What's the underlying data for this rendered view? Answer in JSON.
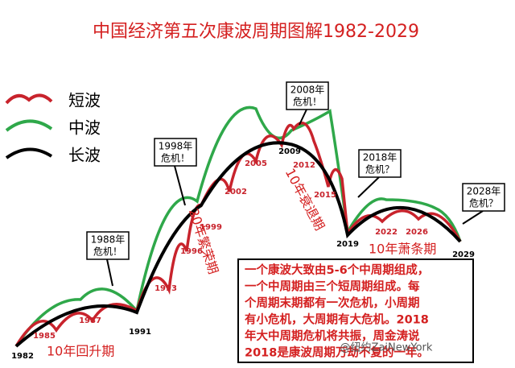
{
  "title": "中国经济第五次康波周期图解1982-2029",
  "legend": [
    "短波",
    "中波",
    "长波"
  ],
  "years": [
    "1982",
    "1985",
    "1987",
    "1991",
    "1993",
    "1996",
    "1999",
    "2002",
    "2005",
    "2009",
    "2012",
    "2015",
    "2019",
    "2022",
    "2026",
    "2029"
  ],
  "callouts": [
    [
      "1988年",
      "危机！"
    ],
    [
      "1998年",
      "危机！"
    ],
    [
      "2008年",
      "危机！"
    ],
    [
      "2018年",
      "危机？"
    ],
    [
      "2028年",
      "危机？"
    ]
  ],
  "phases": [
    "10年回升期",
    "20年繁荣期",
    "10年衰退期",
    "10年萧条期"
  ],
  "note": [
    "一个康波大致由5-6个中周期组成，",
    "一个中周期由三个短周期组成。每",
    "个周期末期都有一次危机，小周期",
    "有小危机，大周期有大危机。2018",
    "年大中周期危机将共振，周金涛说",
    "2018是康波周期万劫不复的一年。"
  ],
  "watermark": "@纽约ZaiNewYork"
}
